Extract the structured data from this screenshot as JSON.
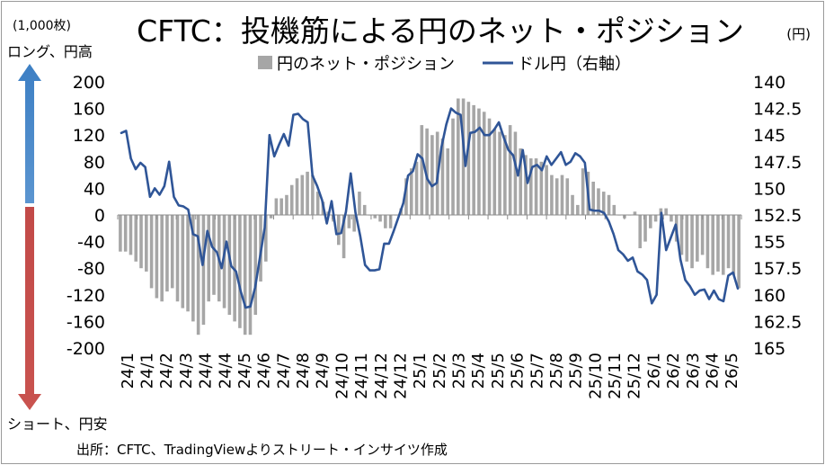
{
  "chart_data": {
    "type": "bar+line",
    "title": "CFTC：投機筋による円のネット・ポジション",
    "left_unit": "(1,000枚)",
    "right_unit": "(円)",
    "arrow_up_label": "ロング、円高",
    "arrow_down_label": "ショート、円安",
    "source": "出所：CFTC、TradingViewよりストリート・インサイツ作成",
    "colors": {
      "bars": "#a6a6a6",
      "line": "#2f5597",
      "arrow_up": "#4a86c5",
      "arrow_down": "#c0504d"
    },
    "y_left": {
      "min": -200,
      "max": 200,
      "ticks": [
        "200",
        "160",
        "120",
        "80",
        "40",
        "0",
        "-40",
        "-80",
        "-120",
        "-160",
        "-200"
      ]
    },
    "y_right": {
      "min": 140,
      "max": 165,
      "inverted": true,
      "ticks": [
        "140",
        "142.5",
        "145",
        "147.5",
        "150",
        "152.5",
        "155",
        "157.5",
        "160",
        "162.5",
        "165"
      ]
    },
    "x_ticks": [
      "24/1",
      "24/1",
      "24/2",
      "24/3",
      "24/4",
      "24/4",
      "24/5",
      "24/6",
      "24/7",
      "24/8",
      "24/9",
      "24/10",
      "24/11",
      "24/12",
      "24/12",
      "25/1",
      "25/2",
      "25/3",
      "25/4",
      "25/5",
      "25/6",
      "25/7",
      "25/8",
      "25/9",
      "25/10",
      "25/11",
      "25/12",
      "26/1",
      "26/2",
      "26/3",
      "26/4",
      "26/5"
    ],
    "series": [
      {
        "name": "円のネット・ポジション",
        "type": "bar",
        "axis": "left",
        "values": [
          -55,
          -55,
          -60,
          -70,
          -80,
          -85,
          -110,
          -125,
          -130,
          -115,
          -110,
          -130,
          -140,
          -145,
          -160,
          -180,
          -165,
          -130,
          -120,
          -130,
          -140,
          -150,
          -160,
          -170,
          -180,
          -180,
          -150,
          -100,
          -70,
          -5,
          25,
          25,
          30,
          45,
          55,
          60,
          65,
          60,
          35,
          20,
          5,
          -10,
          -45,
          -65,
          -20,
          -25,
          35,
          15,
          0,
          -5,
          -10,
          -20,
          -20,
          0,
          10,
          55,
          70,
          80,
          135,
          130,
          120,
          125,
          115,
          100,
          145,
          175,
          175,
          170,
          165,
          160,
          155,
          145,
          130,
          125,
          120,
          135,
          125,
          100,
          90,
          85,
          85,
          80,
          75,
          60,
          55,
          60,
          55,
          30,
          15,
          70,
          65,
          50,
          40,
          35,
          30,
          15,
          0,
          -5,
          0,
          5,
          -50,
          -40,
          -20,
          -10,
          10,
          10,
          -10,
          -40,
          -60,
          -70,
          -80,
          -70,
          -60,
          -80,
          -90,
          -85,
          -90,
          -80,
          -90,
          -110
        ]
      },
      {
        "name": "ドル円（右軸）",
        "type": "line",
        "axis": "right",
        "values": [
          144.8,
          144.6,
          147.2,
          148.2,
          147.6,
          148.0,
          150.8,
          150.0,
          150.6,
          149.8,
          147.5,
          150.8,
          151.6,
          151.7,
          152.0,
          154.3,
          154.5,
          157.2,
          154.0,
          155.5,
          156.0,
          157.5,
          155.0,
          157.3,
          157.8,
          159.7,
          161.2,
          161.1,
          159.3,
          156.5,
          153.7,
          145.0,
          147.0,
          145.9,
          144.9,
          146.0,
          143.1,
          143.0,
          143.5,
          143.8,
          148.8,
          149.8,
          151.1,
          153.3,
          151.2,
          154.3,
          154.2,
          152.2,
          148.6,
          152.3,
          154.5,
          157.2,
          157.7,
          157.7,
          157.6,
          155.2,
          155.2,
          154.0,
          152.7,
          151.4,
          148.8,
          148.4,
          146.8,
          147.2,
          149.1,
          149.8,
          149.5,
          146.1,
          144.0,
          142.5,
          142.9,
          143.1,
          147.9,
          144.8,
          144.7,
          144.3,
          145.0,
          145.0,
          144.5,
          143.8,
          145.2,
          146.4,
          146.9,
          148.8,
          146.4,
          149.5,
          148.0,
          147.8,
          148.3,
          147.0,
          147.8,
          147.2,
          146.6,
          147.8,
          147.5,
          146.7,
          147.0,
          147.6,
          152.0,
          152.1,
          152.1,
          152.3,
          153.1,
          154.3,
          155.8,
          156.2,
          156.8,
          156.5,
          157.8,
          158.1,
          158.6,
          160.8,
          160.0,
          152.3,
          155.8,
          154.6,
          153.4,
          156.7,
          158.6,
          159.2,
          160.0,
          159.6,
          159.5,
          160.4,
          159.6,
          160.4,
          160.6,
          158.2,
          157.9,
          159.4
        ]
      }
    ]
  }
}
